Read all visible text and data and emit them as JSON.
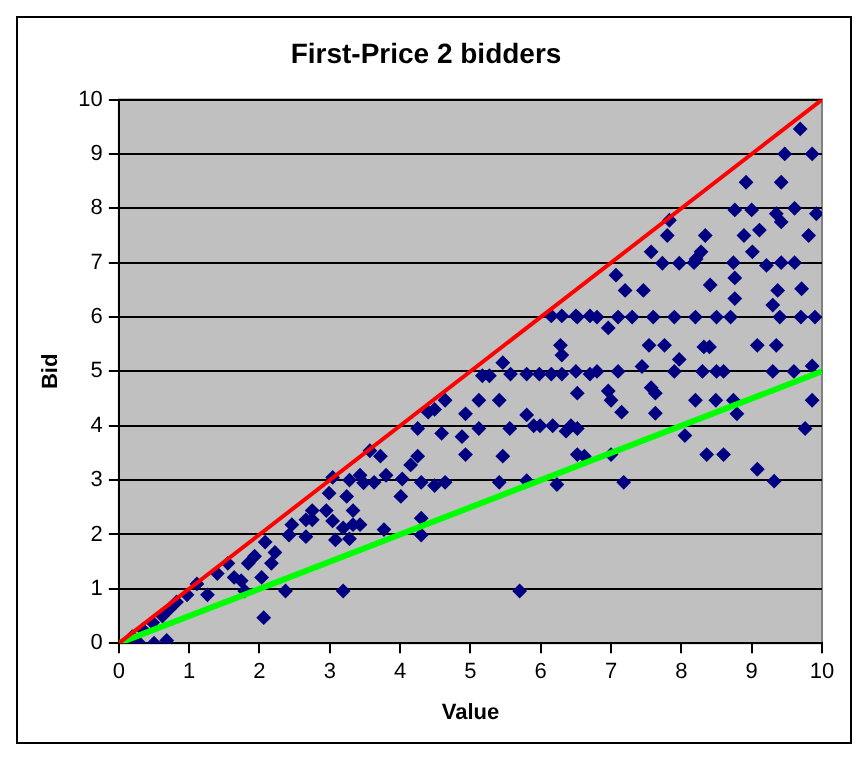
{
  "chart_data": {
    "type": "scatter",
    "title": "First-Price 2 bidders",
    "xlabel": "Value",
    "ylabel": "Bid",
    "xlim": [
      0,
      10
    ],
    "xticks": [
      0,
      1,
      2,
      3,
      4,
      5,
      6,
      7,
      8,
      9,
      10
    ],
    "ylim": [
      0,
      10
    ],
    "yticks": [
      0,
      1,
      2,
      3,
      4,
      5,
      6,
      7,
      8,
      9,
      10
    ],
    "grid": "y",
    "legend": false,
    "series": [
      {
        "color": "#000080",
        "marker": "diamond",
        "x": [
          9.69,
          9.47,
          9.86,
          8.92,
          9.42,
          8.76,
          9.0,
          7.83,
          9.35,
          9.42,
          9.61,
          9.92,
          7.8,
          8.34,
          8.89,
          9.11,
          9.81,
          7.57,
          8.28,
          8.21,
          9.01,
          7.73,
          7.97,
          8.18,
          8.74,
          9.21,
          9.42,
          9.61,
          7.07,
          7.2,
          7.46,
          8.41,
          8.76,
          8.76,
          9.37,
          9.71,
          9.3,
          6.52,
          6.8,
          7.1,
          7.3,
          7.6,
          7.9,
          8.2,
          8.5,
          8.7,
          9.4,
          9.7,
          9.9,
          6.96,
          7.54,
          7.76,
          8.32,
          8.4,
          9.08,
          9.35,
          7.97,
          7.44,
          6.5,
          6.8,
          7.1,
          7.9,
          8.3,
          8.5,
          8.6,
          9.3,
          9.6,
          9.86,
          6.52,
          6.96,
          7.0,
          7.57,
          7.63,
          7.15,
          7.63,
          8.2,
          8.49,
          8.74,
          8.79,
          9.86,
          6.52,
          8.05,
          9.76,
          6.52,
          7.0,
          8.36,
          8.6,
          9.08,
          7.18,
          9.32,
          6.15,
          6.3,
          6.5,
          6.7,
          6.28,
          6.3,
          5.46,
          5.27,
          5.17,
          5.57,
          5.8,
          5.98,
          6.15,
          6.3,
          6.7,
          4.64,
          4.49,
          4.4,
          5.12,
          5.41,
          4.93,
          5.8,
          5.9,
          5.99,
          6.17,
          6.36,
          6.43,
          4.25,
          4.59,
          4.88,
          5.12,
          5.56,
          3.72,
          4.25,
          4.15,
          4.93,
          5.46,
          3.43,
          3.63,
          3.8,
          4.03,
          4.3,
          4.49,
          4.64,
          5.41,
          5.8,
          6.23,
          6.62,
          4.01,
          3.33,
          3.43,
          3.77,
          4.3,
          4.3,
          5.7,
          3.57,
          3.04,
          3.28,
          3.48,
          2.99,
          3.24,
          2.95,
          2.75,
          2.66,
          2.46,
          2.42,
          2.75,
          2.66,
          3.04,
          3.19,
          3.33,
          3.08,
          3.28,
          2.08,
          2.22,
          1.93,
          2.17,
          1.84,
          1.55,
          1.64,
          1.4,
          1.74,
          2.03,
          1.79,
          1.26,
          1.11,
          0.97,
          0.82,
          0.72,
          0.62,
          0.48,
          0.34,
          0.19,
          2.37,
          3.19,
          2.06,
          0.29,
          0.5,
          0.68
        ],
        "values": [
          9.46,
          9.0,
          9.0,
          8.48,
          8.48,
          7.97,
          7.97,
          7.78,
          7.9,
          7.75,
          8.0,
          7.9,
          7.5,
          7.5,
          7.5,
          7.6,
          7.5,
          7.2,
          7.2,
          7.07,
          7.2,
          6.99,
          6.99,
          7.0,
          7.0,
          6.95,
          7.0,
          7.0,
          6.77,
          6.49,
          6.49,
          6.59,
          6.72,
          6.34,
          6.49,
          6.52,
          6.22,
          6.0,
          6.0,
          6.0,
          6.0,
          6.0,
          6.0,
          6.0,
          6.0,
          6.0,
          6.0,
          6.0,
          6.0,
          5.8,
          5.48,
          5.48,
          5.45,
          5.45,
          5.48,
          5.48,
          5.22,
          5.09,
          5.0,
          5.0,
          5.0,
          5.0,
          5.0,
          5.0,
          5.0,
          5.0,
          5.0,
          5.1,
          4.6,
          4.64,
          4.47,
          4.7,
          4.6,
          4.25,
          4.23,
          4.47,
          4.47,
          4.47,
          4.22,
          4.47,
          3.95,
          3.82,
          3.95,
          3.47,
          3.47,
          3.47,
          3.47,
          3.2,
          2.96,
          2.98,
          6.02,
          6.02,
          6.02,
          6.02,
          5.48,
          5.3,
          5.16,
          4.92,
          4.92,
          4.95,
          4.95,
          4.95,
          4.95,
          4.95,
          4.95,
          4.47,
          4.3,
          4.25,
          4.47,
          4.47,
          4.22,
          4.2,
          4.0,
          4.0,
          4.0,
          3.9,
          4.0,
          3.95,
          3.86,
          3.8,
          3.95,
          3.95,
          3.44,
          3.44,
          3.28,
          3.47,
          3.44,
          3.09,
          2.96,
          3.09,
          3.02,
          2.96,
          2.9,
          2.96,
          2.96,
          2.99,
          2.92,
          3.44,
          2.7,
          2.44,
          2.18,
          2.09,
          2.3,
          1.99,
          0.96,
          3.54,
          3.05,
          3.0,
          2.95,
          2.76,
          2.7,
          2.44,
          2.44,
          2.27,
          2.18,
          1.99,
          2.27,
          1.96,
          2.25,
          2.12,
          2.18,
          1.9,
          1.92,
          1.86,
          1.67,
          1.6,
          1.47,
          1.47,
          1.47,
          1.21,
          1.28,
          1.15,
          1.21,
          0.96,
          0.89,
          1.09,
          0.89,
          0.76,
          0.63,
          0.5,
          0.38,
          0.25,
          0.12,
          0.96,
          0.96,
          0.47,
          0.0,
          0.0,
          0.05
        ]
      },
      {
        "type": "line",
        "color": "#ff0000",
        "marker": "none",
        "x": [
          0,
          10
        ],
        "values": [
          0,
          10
        ]
      },
      {
        "type": "line",
        "color": "#00ff00",
        "marker": "none",
        "x": [
          0,
          10
        ],
        "values": [
          0,
          5
        ]
      }
    ]
  }
}
